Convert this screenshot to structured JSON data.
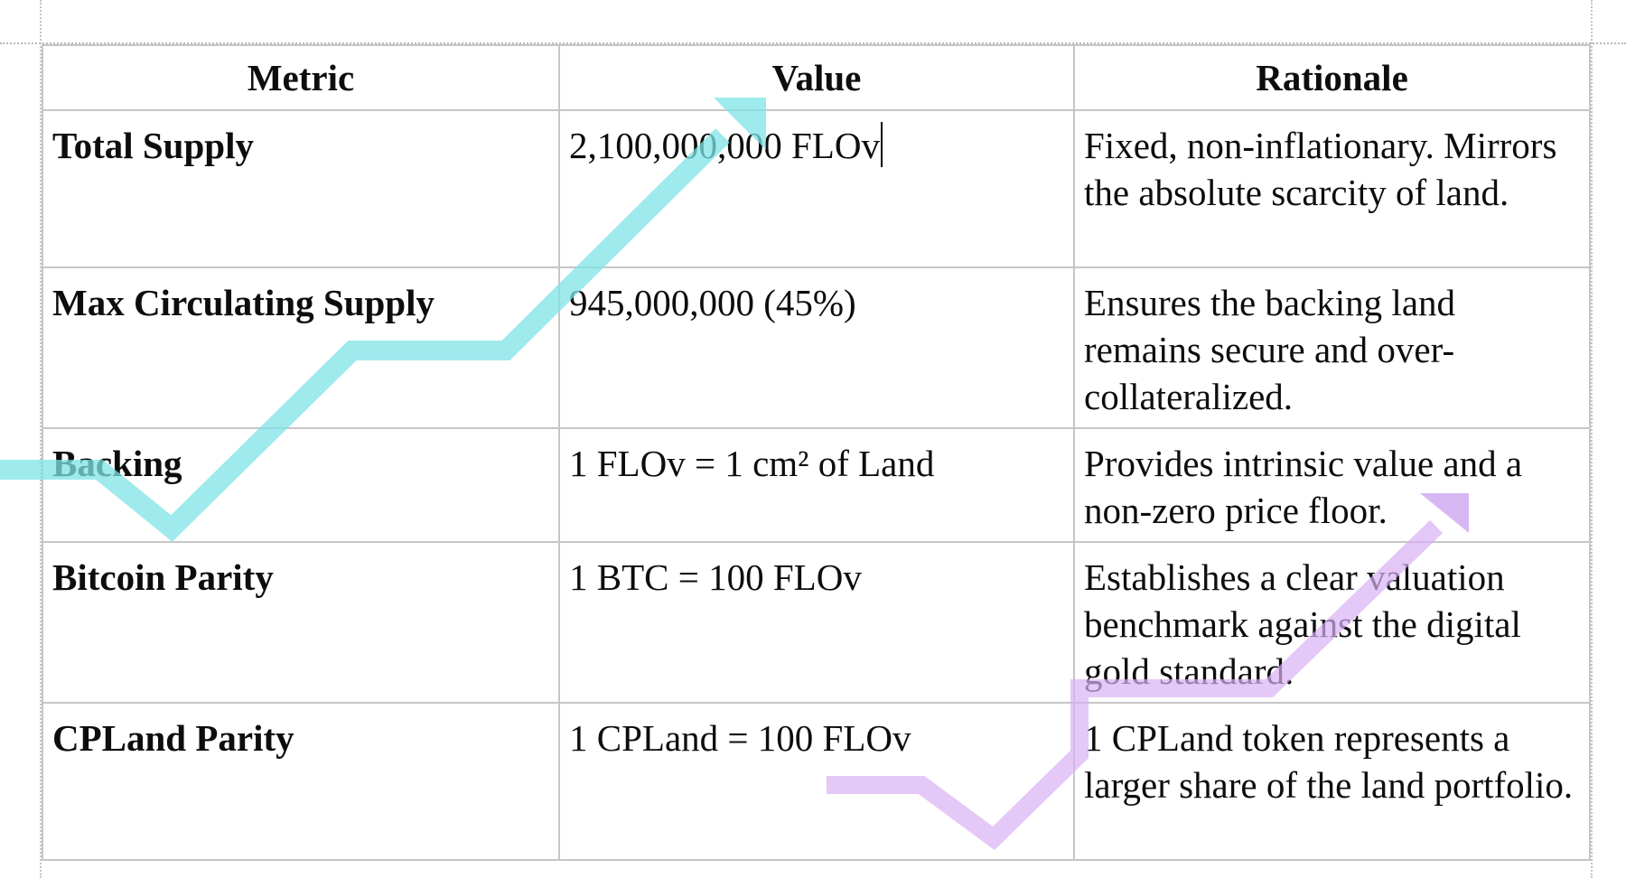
{
  "table": {
    "headers": [
      "Metric",
      "Value",
      "Rationale"
    ],
    "rows": [
      {
        "metric": "Total Supply",
        "value": "2,100,000,000 FLOv",
        "rationale": "Fixed, non-inflationary. Mirrors the absolute scarcity of land."
      },
      {
        "metric": "Max Circulating Supply",
        "value": "945,000,000 (45%)",
        "rationale": "Ensures the backing land remains secure and over-collateralized."
      },
      {
        "metric": "Backing",
        "value": "1 FLOv = 1 cm² of Land",
        "rationale": "Provides intrinsic value and a non-zero price floor."
      },
      {
        "metric": "Bitcoin Parity",
        "value": "1 BTC = 100 FLOv",
        "rationale": "Establishes a clear valuation benchmark against the digital gold standard."
      },
      {
        "metric": "CPLand Parity",
        "value": "1 CPLand = 100 FLOv",
        "rationale": "1 CPLand token represents a larger share of the land portfolio."
      }
    ]
  },
  "decorations": {
    "cyan_arrow_icon": "trend-arrow-cyan",
    "purple_arrow_icon": "trend-arrow-purple",
    "cyan_color": "#7ee3e6",
    "purple_color": "#d8b0f3"
  }
}
